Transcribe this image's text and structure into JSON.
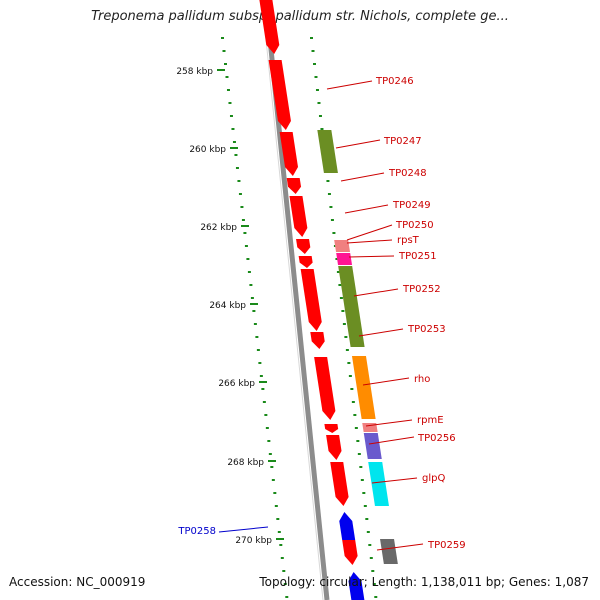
{
  "title": "Treponema pallidum subsp. pallidum str. Nichols, complete ge...",
  "footer": {
    "accession_label": "Accession: NC_000919",
    "topology_label": "Topology: circular; Length: 1,138,011 bp; Genes: 1,087"
  },
  "scale_labels": [
    "258 kbp",
    "260 kbp",
    "262 kbp",
    "264 kbp",
    "266 kbp",
    "268 kbp",
    "270 kbp"
  ],
  "colors": {
    "backbone": "#8c8c8c",
    "tick": "#1a8a1a",
    "label": "#cc0000",
    "label_reverse": "#0000cc",
    "red": "#ff0000",
    "olive": "#6b8e23",
    "pink": "#f08080",
    "magenta": "#ff1493",
    "orange": "#ff8c00",
    "slate": "#6a5acd",
    "cyan": "#00e5ee",
    "grey": "#696969",
    "blue": "#0000ee"
  },
  "gene_labels": [
    "TP0246",
    "TP0247",
    "TP0248",
    "TP0249",
    "TP0250",
    "rpsT",
    "TP0251",
    "TP0252",
    "TP0253",
    "rho",
    "rpmE",
    "TP0256",
    "glpQ",
    "TP0259",
    "TP0258"
  ]
}
